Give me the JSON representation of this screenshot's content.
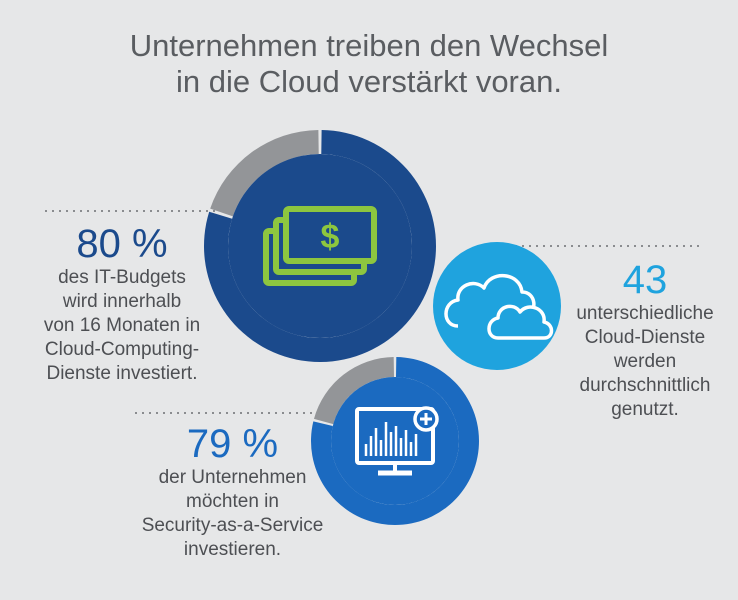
{
  "title": {
    "line1": "Unternehmen treiben den Wechsel",
    "line2": "in die Cloud verstärkt voran."
  },
  "colors": {
    "background": "#e6e7e8",
    "donut1_fill": "#1b4a8c",
    "donut2_fill": "#1b6ac0",
    "donut_rest": "#939598",
    "cloud_circle": "#1fa3de",
    "money_icon": "#8dc63f"
  },
  "stats": [
    {
      "value": "80 %",
      "lines": [
        "des IT-Budgets",
        "wird innerhalb",
        "von 16 Monaten in",
        "Cloud-Computing-",
        "Dienste investiert."
      ],
      "icon": "money-icon",
      "percent": 80
    },
    {
      "value": "43",
      "lines": [
        "unterschiedliche",
        "Cloud-Dienste",
        "werden",
        "durchschnittlich",
        "genutzt."
      ],
      "icon": "cloud-icon"
    },
    {
      "value": "79 %",
      "lines": [
        "der Unternehmen",
        "möchten in",
        "Security-as-a-Service",
        "investieren."
      ],
      "icon": "monitor-chart-icon",
      "percent": 79
    }
  ]
}
